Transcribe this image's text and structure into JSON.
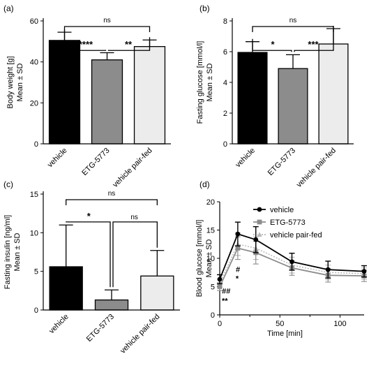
{
  "chart_data": [
    {
      "panel": "(a)",
      "type": "bar",
      "ylabel_line1": "Body weight [g]",
      "ylabel_line2": "Mean ± SD",
      "categories": [
        "vehicle",
        "ETG-5773",
        "vehicle pair-fed"
      ],
      "values": [
        50.5,
        41,
        47.5
      ],
      "errors": [
        4,
        3.5,
        3.2
      ],
      "bar_colors": [
        "#000000",
        "#8c8c8c",
        "#ececec"
      ],
      "ylim": [
        0,
        60
      ],
      "yticks": [
        "0",
        "20",
        "40",
        "60"
      ],
      "comparisons": [
        {
          "from": 0,
          "to": 2,
          "label": "ns"
        },
        {
          "from": 0,
          "to": 1,
          "label": "****"
        },
        {
          "from": 1,
          "to": 2,
          "label": "**"
        }
      ]
    },
    {
      "panel": "(b)",
      "type": "bar",
      "ylabel_line1": "Fasting glucose [mmol/l]",
      "ylabel_line2": "Mean ± SD",
      "categories": [
        "vehicle",
        "ETG-5773",
        "vehicle pair-fed"
      ],
      "values": [
        5.95,
        4.9,
        6.5
      ],
      "errors": [
        0.7,
        0.9,
        1.0
      ],
      "bar_colors": [
        "#000000",
        "#8c8c8c",
        "#ececec"
      ],
      "ylim": [
        0,
        8
      ],
      "yticks": [
        "0",
        "2",
        "4",
        "6",
        "8"
      ],
      "comparisons": [
        {
          "from": 0,
          "to": 2,
          "label": "ns"
        },
        {
          "from": 0,
          "to": 1,
          "label": "*"
        },
        {
          "from": 1,
          "to": 2,
          "label": "***"
        }
      ]
    },
    {
      "panel": "(c)",
      "type": "bar",
      "ylabel_line1": "Fasting insulin [ng/ml]",
      "ylabel_line2": "Mean ± SD",
      "categories": [
        "vehicle",
        "ETG-5773",
        "vehicle pair-fed"
      ],
      "values": [
        5.6,
        1.3,
        4.4
      ],
      "errors": [
        5.4,
        1.3,
        3.3
      ],
      "bar_colors": [
        "#000000",
        "#8c8c8c",
        "#ececec"
      ],
      "ylim": [
        0,
        15
      ],
      "yticks": [
        "0",
        "5",
        "10",
        "15"
      ],
      "comparisons": [
        {
          "from": 0,
          "to": 2,
          "label": "ns"
        },
        {
          "from": 0,
          "to": 1,
          "label": "*"
        },
        {
          "from": 1,
          "to": 2,
          "label": "ns"
        }
      ]
    },
    {
      "panel": "(d)",
      "type": "line",
      "ylabel_line1": "Blood glucose [mmol/l]",
      "ylabel_line2": "Mean ± SD",
      "xlabel": "Time [min]",
      "xlim": [
        0,
        120
      ],
      "ylim": [
        0,
        20
      ],
      "xticks": [
        "0",
        "50",
        "100"
      ],
      "yticks": [
        "0",
        "5",
        "10",
        "15",
        "20"
      ],
      "x": [
        0,
        15,
        30,
        60,
        90,
        120
      ],
      "series": [
        {
          "name": "vehicle",
          "values": [
            6.3,
            14.3,
            13.3,
            9.4,
            8.0,
            7.7
          ],
          "errors": [
            0.8,
            2.1,
            2.3,
            1.5,
            1.5,
            1.0
          ],
          "color": "#000000",
          "dash": "solid",
          "marker": "circle"
        },
        {
          "name": "ETG-5773",
          "values": [
            5.0,
            11.8,
            11.0,
            8.3,
            7.0,
            6.9
          ],
          "errors": [
            0.7,
            2.0,
            2.0,
            1.3,
            1.2,
            1.0
          ],
          "color": "#8c8c8c",
          "dash": "solid",
          "marker": "square"
        },
        {
          "name": "vehicle pair-fed",
          "values": [
            5.6,
            12.5,
            11.8,
            8.8,
            7.5,
            7.3
          ],
          "errors": [
            0.7,
            2.0,
            2.0,
            1.4,
            1.3,
            1.0
          ],
          "color": "#b5b5b5",
          "dash": "dotted",
          "marker": "triangle"
        }
      ],
      "annotations": [
        "##",
        "**",
        "#",
        "*"
      ]
    }
  ]
}
